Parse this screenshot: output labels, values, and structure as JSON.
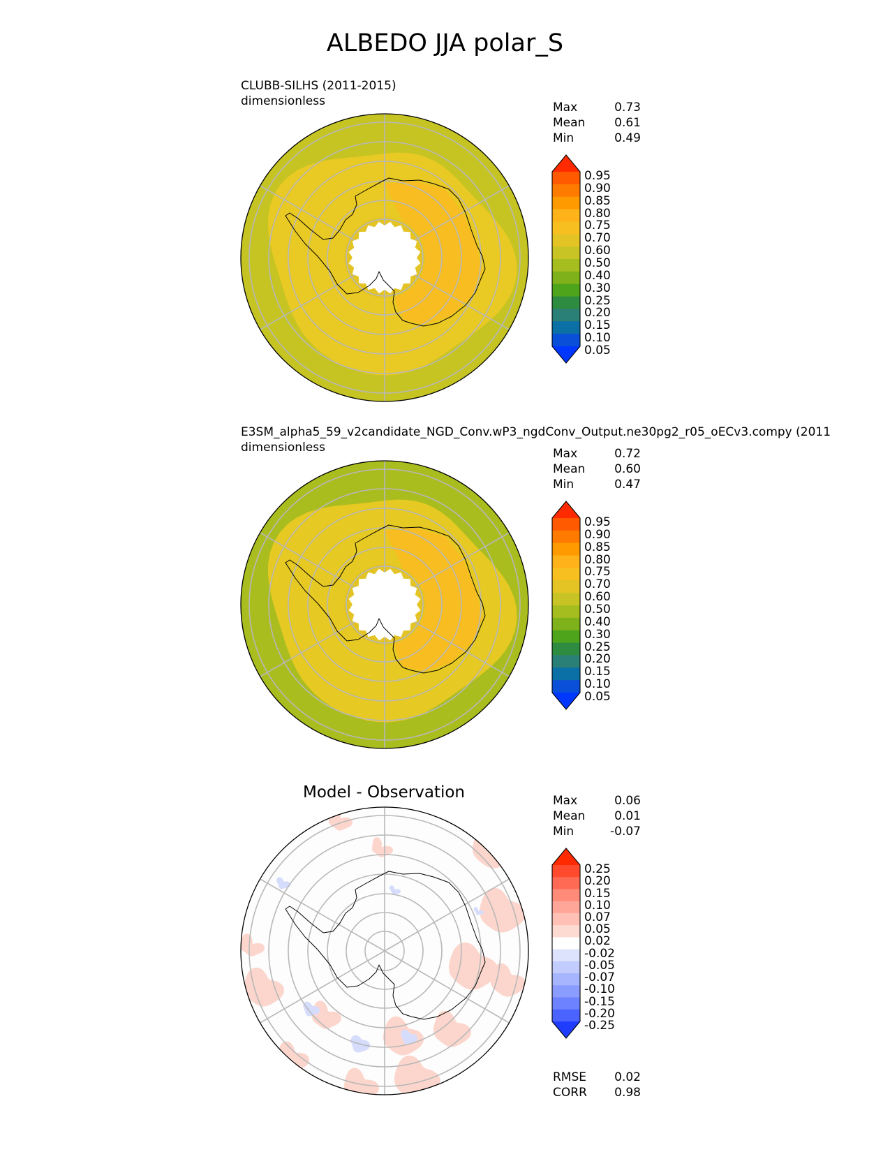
{
  "title": "ALBEDO JJA polar_S",
  "panels": [
    {
      "id": "test",
      "title_line1": "CLUBB-SILHS (2011-2015)",
      "title_line2": "dimensionless",
      "stats": {
        "max_label": "Max",
        "max": "0.73",
        "mean_label": "Mean",
        "mean": "0.61",
        "min_label": "Min",
        "min": "0.49"
      },
      "colors": {
        "ocean": "#c5c423",
        "seaice": "#e9c923",
        "continent": "#f8be21",
        "interior": "#e3c424"
      }
    },
    {
      "id": "ref",
      "title_line1": "E3SM_alpha5_59_v2candidate_NGD_Conv.wP3_ngdConv_Output.ne30pg2_r05_oECv3.compy (2011",
      "title_line2": "dimensionless",
      "stats": {
        "max_label": "Max",
        "max": "0.72",
        "mean_label": "Mean",
        "mean": "0.60",
        "min_label": "Min",
        "min": "0.47"
      },
      "colors": {
        "ocean": "#a9bd1f",
        "seaice": "#e6c923",
        "continent": "#f8be21",
        "interior": "#e3c424"
      }
    },
    {
      "id": "diff",
      "title": "Model - Observation",
      "stats": {
        "max_label": "Max",
        "max": "0.06",
        "mean_label": "Mean",
        "mean": "0.01",
        "min_label": "Min",
        "min": "-0.07"
      },
      "metrics": {
        "rmse_label": "RMSE",
        "rmse": "0.02",
        "corr_label": "CORR",
        "corr": "0.98"
      },
      "colors": {
        "pos": "#fcd6cc",
        "neg": "#d6dcfc",
        "base": "#fdfdfd"
      }
    }
  ],
  "chart_data": [
    {
      "type": "heatmap",
      "projection": "south polar stereographic",
      "title": "CLUBB-SILHS (2011-2015)",
      "units": "dimensionless",
      "colorbar_levels": [
        "0.95",
        "0.90",
        "0.85",
        "0.80",
        "0.75",
        "0.70",
        "0.60",
        "0.50",
        "0.40",
        "0.30",
        "0.25",
        "0.20",
        "0.15",
        "0.10",
        "0.05"
      ],
      "colorbar_colors": [
        "#ff2a00",
        "#ff5a00",
        "#ff7b00",
        "#ff9a00",
        "#ffb21a",
        "#f7c020",
        "#e3c424",
        "#c9c425",
        "#a5bd1e",
        "#7fb11a",
        "#4ea51c",
        "#2d8c3f",
        "#2a7f77",
        "#0a70a5",
        "#0a4fd7",
        "#0037ff"
      ],
      "stats": {
        "max": 0.73,
        "mean": 0.61,
        "min": 0.49
      }
    },
    {
      "type": "heatmap",
      "projection": "south polar stereographic",
      "title": "E3SM_alpha5_59_v2candidate_NGD_Conv.wP3_ngdConv_Output.ne30pg2_r05_oECv3.compy (2011",
      "units": "dimensionless",
      "colorbar_levels": [
        "0.95",
        "0.90",
        "0.85",
        "0.80",
        "0.75",
        "0.70",
        "0.60",
        "0.50",
        "0.40",
        "0.30",
        "0.25",
        "0.20",
        "0.15",
        "0.10",
        "0.05"
      ],
      "colorbar_colors": [
        "#ff2a00",
        "#ff5a00",
        "#ff7b00",
        "#ff9a00",
        "#ffb21a",
        "#f7c020",
        "#e3c424",
        "#c9c425",
        "#a5bd1e",
        "#7fb11a",
        "#4ea51c",
        "#2d8c3f",
        "#2a7f77",
        "#0a70a5",
        "#0a4fd7",
        "#0037ff"
      ],
      "stats": {
        "max": 0.72,
        "mean": 0.6,
        "min": 0.47
      }
    },
    {
      "type": "heatmap",
      "projection": "south polar stereographic",
      "title": "Model - Observation",
      "colorbar_levels": [
        "0.25",
        "0.20",
        "0.15",
        "0.10",
        "0.07",
        "0.05",
        "0.02",
        "-0.02",
        "-0.05",
        "-0.07",
        "-0.10",
        "-0.15",
        "-0.20",
        "-0.25"
      ],
      "colorbar_colors": [
        "#ff2a00",
        "#ff4a2e",
        "#ff6a55",
        "#ff8b78",
        "#ffa699",
        "#ffc1b5",
        "#fddbd3",
        "#ffffff",
        "#dde3fd",
        "#c3cdfd",
        "#a6b5fd",
        "#8a9cfd",
        "#6c82ff",
        "#4b64ff",
        "#1f3cff"
      ],
      "stats": {
        "max": 0.06,
        "mean": 0.01,
        "min": -0.07
      },
      "rmse": 0.02,
      "corr": 0.98
    }
  ]
}
